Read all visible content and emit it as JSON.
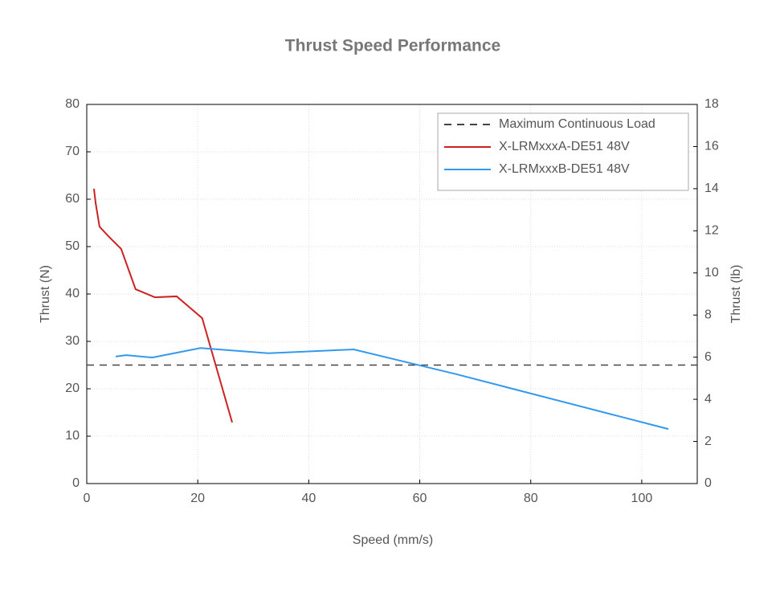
{
  "chart_data": {
    "type": "line",
    "title": "Thrust Speed Performance",
    "xlabel": "Speed (mm/s)",
    "ylabel": "Thrust (N)",
    "y2label": "Thrust (lb)",
    "xlim": [
      0,
      110
    ],
    "xticks": [
      0,
      20,
      40,
      60,
      80,
      100
    ],
    "ylim": [
      0,
      80
    ],
    "yticks": [
      0,
      10,
      20,
      30,
      40,
      50,
      60,
      70,
      80
    ],
    "y2lim": [
      0,
      18
    ],
    "y2ticks": [
      0,
      2,
      4,
      6,
      8,
      10,
      12,
      14,
      16,
      18
    ],
    "grid": true,
    "legend": "top-right",
    "series": [
      {
        "name": "Maximum Continuous Load",
        "color": "#444444",
        "dashed": true,
        "x": [
          0,
          110
        ],
        "values": [
          25,
          25
        ]
      },
      {
        "name": "X-LRMxxxA-DE51 48V",
        "color": "#cc2222",
        "x": [
          1.3,
          1.6,
          2.3,
          3.9,
          6.2,
          8.8,
          12.3,
          16.2,
          20.8,
          26.2
        ],
        "values": [
          62.2,
          59.2,
          54.2,
          52.2,
          49.5,
          41,
          39.3,
          39.5,
          34.9,
          12.9
        ]
      },
      {
        "name": "X-LRMxxxB-DE51 48V",
        "color": "#3399ee",
        "x": [
          5.2,
          7.1,
          11.8,
          20.5,
          32.7,
          48.1,
          66.5,
          104.8
        ],
        "values": [
          26.8,
          27.1,
          26.6,
          28.6,
          27.5,
          28.3,
          23.1,
          11.5
        ]
      }
    ]
  }
}
